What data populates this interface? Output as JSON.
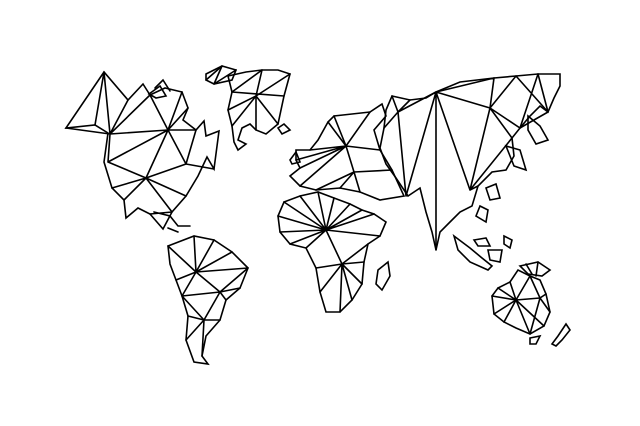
{
  "map": {
    "style": "geometric-line-art",
    "background_color": "#ffffff",
    "stroke_color": "#000000",
    "regions": [
      {
        "name": "north-america"
      },
      {
        "name": "greenland"
      },
      {
        "name": "iceland"
      },
      {
        "name": "south-america"
      },
      {
        "name": "europe"
      },
      {
        "name": "africa"
      },
      {
        "name": "madagascar"
      },
      {
        "name": "asia"
      },
      {
        "name": "indonesia"
      },
      {
        "name": "australia"
      },
      {
        "name": "new-zealand"
      }
    ]
  }
}
